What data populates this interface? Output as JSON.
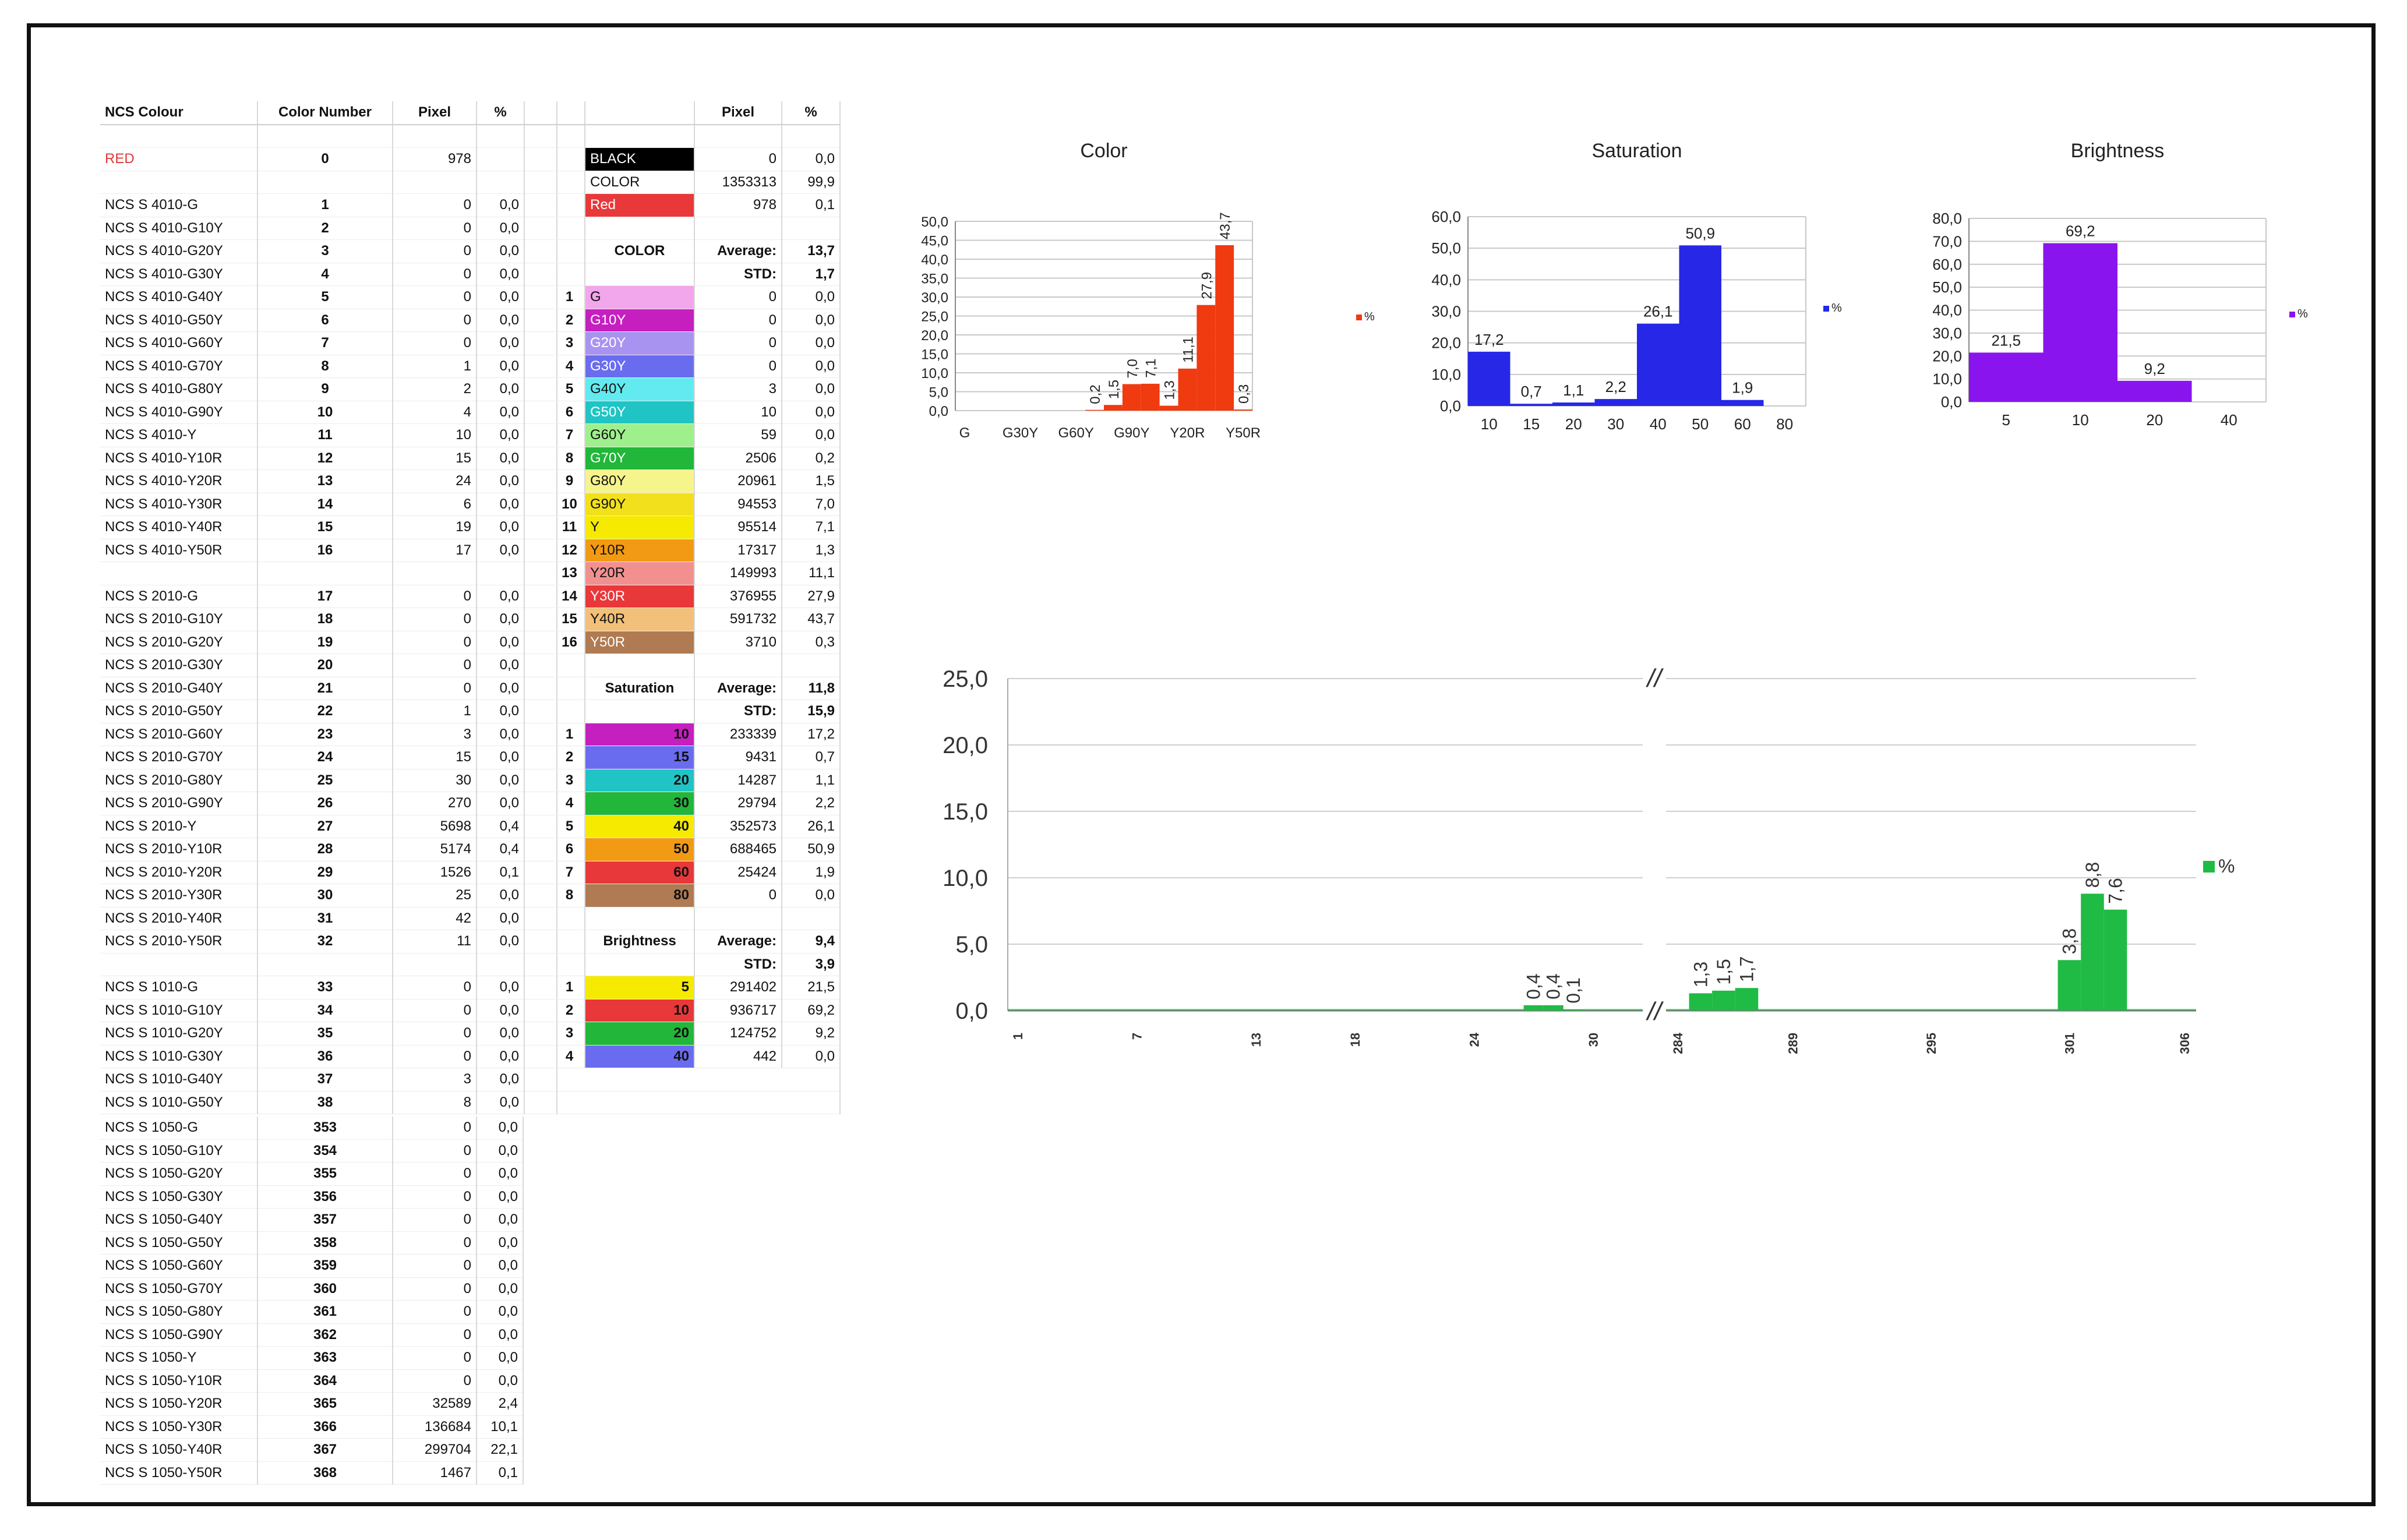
{
  "left_table": {
    "headers": [
      "NCS Colour",
      "Color Number",
      "Pixel",
      "%"
    ],
    "red_row": {
      "name": "RED",
      "num": "0",
      "pixel": "978",
      "pct": ""
    },
    "group1": [
      [
        "NCS S 4010-G",
        "1",
        "0",
        "0,0"
      ],
      [
        "NCS S 4010-G10Y",
        "2",
        "0",
        "0,0"
      ],
      [
        "NCS S 4010-G20Y",
        "3",
        "0",
        "0,0"
      ],
      [
        "NCS S 4010-G30Y",
        "4",
        "0",
        "0,0"
      ],
      [
        "NCS S 4010-G40Y",
        "5",
        "0",
        "0,0"
      ],
      [
        "NCS S 4010-G50Y",
        "6",
        "0",
        "0,0"
      ],
      [
        "NCS S 4010-G60Y",
        "7",
        "0",
        "0,0"
      ],
      [
        "NCS S 4010-G70Y",
        "8",
        "1",
        "0,0"
      ],
      [
        "NCS S 4010-G80Y",
        "9",
        "2",
        "0,0"
      ],
      [
        "NCS S 4010-G90Y",
        "10",
        "4",
        "0,0"
      ],
      [
        "NCS S 4010-Y",
        "11",
        "10",
        "0,0"
      ],
      [
        "NCS S 4010-Y10R",
        "12",
        "15",
        "0,0"
      ],
      [
        "NCS S 4010-Y20R",
        "13",
        "24",
        "0,0"
      ],
      [
        "NCS S 4010-Y30R",
        "14",
        "6",
        "0,0"
      ],
      [
        "NCS S 4010-Y40R",
        "15",
        "19",
        "0,0"
      ],
      [
        "NCS S 4010-Y50R",
        "16",
        "17",
        "0,0"
      ]
    ],
    "group2": [
      [
        "NCS S 2010-G",
        "17",
        "0",
        "0,0"
      ],
      [
        "NCS S 2010-G10Y",
        "18",
        "0",
        "0,0"
      ],
      [
        "NCS S 2010-G20Y",
        "19",
        "0",
        "0,0"
      ],
      [
        "NCS S 2010-G30Y",
        "20",
        "0",
        "0,0"
      ],
      [
        "NCS S 2010-G40Y",
        "21",
        "0",
        "0,0"
      ],
      [
        "NCS S 2010-G50Y",
        "22",
        "1",
        "0,0"
      ],
      [
        "NCS S 2010-G60Y",
        "23",
        "3",
        "0,0"
      ],
      [
        "NCS S 2010-G70Y",
        "24",
        "15",
        "0,0"
      ],
      [
        "NCS S 2010-G80Y",
        "25",
        "30",
        "0,0"
      ],
      [
        "NCS S 2010-G90Y",
        "26",
        "270",
        "0,0"
      ],
      [
        "NCS S 2010-Y",
        "27",
        "5698",
        "0,4"
      ],
      [
        "NCS S 2010-Y10R",
        "28",
        "5174",
        "0,4"
      ],
      [
        "NCS S 2010-Y20R",
        "29",
        "1526",
        "0,1"
      ],
      [
        "NCS S 2010-Y30R",
        "30",
        "25",
        "0,0"
      ],
      [
        "NCS S 2010-Y40R",
        "31",
        "42",
        "0,0"
      ],
      [
        "NCS S 2010-Y50R",
        "32",
        "11",
        "0,0"
      ]
    ],
    "group3": [
      [
        "NCS S 1010-G",
        "33",
        "0",
        "0,0"
      ],
      [
        "NCS S 1010-G10Y",
        "34",
        "0",
        "0,0"
      ],
      [
        "NCS S 1010-G20Y",
        "35",
        "0",
        "0,0"
      ],
      [
        "NCS S 1010-G30Y",
        "36",
        "0",
        "0,0"
      ],
      [
        "NCS S 1010-G40Y",
        "37",
        "3",
        "0,0"
      ],
      [
        "NCS S 1010-G50Y",
        "38",
        "8",
        "0,0"
      ]
    ],
    "group4": [
      [
        "NCS S 1050-G",
        "353",
        "0",
        "0,0"
      ],
      [
        "NCS S 1050-G10Y",
        "354",
        "0",
        "0,0"
      ],
      [
        "NCS S 1050-G20Y",
        "355",
        "0",
        "0,0"
      ],
      [
        "NCS S 1050-G30Y",
        "356",
        "0",
        "0,0"
      ],
      [
        "NCS S 1050-G40Y",
        "357",
        "0",
        "0,0"
      ],
      [
        "NCS S 1050-G50Y",
        "358",
        "0",
        "0,0"
      ],
      [
        "NCS S 1050-G60Y",
        "359",
        "0",
        "0,0"
      ],
      [
        "NCS S 1050-G70Y",
        "360",
        "0",
        "0,0"
      ],
      [
        "NCS S 1050-G80Y",
        "361",
        "0",
        "0,0"
      ],
      [
        "NCS S 1050-G90Y",
        "362",
        "0",
        "0,0"
      ],
      [
        "NCS S 1050-Y",
        "363",
        "0",
        "0,0"
      ],
      [
        "NCS S 1050-Y10R",
        "364",
        "0",
        "0,0"
      ],
      [
        "NCS S 1050-Y20R",
        "365",
        "32589",
        "2,4"
      ],
      [
        "NCS S 1050-Y30R",
        "366",
        "136684",
        "10,1"
      ],
      [
        "NCS S 1050-Y40R",
        "367",
        "299704",
        "22,1"
      ],
      [
        "NCS S 1050-Y50R",
        "368",
        "1467",
        "0,1"
      ]
    ]
  },
  "summary_table": {
    "headers": [
      "Pixel",
      "%"
    ],
    "top_rows": [
      {
        "label": "BLACK",
        "bg": "#000000",
        "fg": "#ffffff",
        "pixel": "0",
        "pct": "0,0"
      },
      {
        "label": "COLOR",
        "bg": "#ffffff",
        "fg": "#111111",
        "pixel": "1353313",
        "pct": "99,9"
      },
      {
        "label": "Red",
        "bg": "#e8383a",
        "fg": "#ffffff",
        "pixel": "978",
        "pct": "0,1"
      }
    ],
    "color_section": {
      "title": "COLOR",
      "avg_label": "Average:",
      "avg": "13,7",
      "std_label": "STD:",
      "std": "1,7",
      "rows": [
        {
          "n": "1",
          "label": "G",
          "bg": "#f2a6ec",
          "fg": "#111111",
          "pixel": "0",
          "pct": "0,0"
        },
        {
          "n": "2",
          "label": "G10Y",
          "bg": "#c61fc0",
          "fg": "#ffffff",
          "pixel": "0",
          "pct": "0,0"
        },
        {
          "n": "3",
          "label": "G20Y",
          "bg": "#a893f0",
          "fg": "#ffffff",
          "pixel": "0",
          "pct": "0,0"
        },
        {
          "n": "4",
          "label": "G30Y",
          "bg": "#6a6cf0",
          "fg": "#ffffff",
          "pixel": "0",
          "pct": "0,0"
        },
        {
          "n": "5",
          "label": "G40Y",
          "bg": "#62eaf0",
          "fg": "#111111",
          "pixel": "3",
          "pct": "0,0"
        },
        {
          "n": "6",
          "label": "G50Y",
          "bg": "#21c4c4",
          "fg": "#ffffff",
          "pixel": "10",
          "pct": "0,0"
        },
        {
          "n": "7",
          "label": "G60Y",
          "bg": "#9ef08c",
          "fg": "#111111",
          "pixel": "59",
          "pct": "0,0"
        },
        {
          "n": "8",
          "label": "G70Y",
          "bg": "#22b63a",
          "fg": "#ffffff",
          "pixel": "2506",
          "pct": "0,2"
        },
        {
          "n": "9",
          "label": "G80Y",
          "bg": "#f5f58c",
          "fg": "#111111",
          "pixel": "20961",
          "pct": "1,5"
        },
        {
          "n": "10",
          "label": "G90Y",
          "bg": "#f2e01c",
          "fg": "#111111",
          "pixel": "94553",
          "pct": "7,0"
        },
        {
          "n": "11",
          "label": "Y",
          "bg": "#f5ea00",
          "fg": "#111111",
          "pixel": "95514",
          "pct": "7,1"
        },
        {
          "n": "12",
          "label": "Y10R",
          "bg": "#f29a14",
          "fg": "#111111",
          "pixel": "17317",
          "pct": "1,3"
        },
        {
          "n": "13",
          "label": "Y20R",
          "bg": "#f29090",
          "fg": "#111111",
          "pixel": "149993",
          "pct": "11,1"
        },
        {
          "n": "14",
          "label": "Y30R",
          "bg": "#e8383a",
          "fg": "#ffffff",
          "pixel": "376955",
          "pct": "27,9"
        },
        {
          "n": "15",
          "label": "Y40R",
          "bg": "#f2c078",
          "fg": "#111111",
          "pixel": "591732",
          "pct": "43,7"
        },
        {
          "n": "16",
          "label": "Y50R",
          "bg": "#b07a52",
          "fg": "#ffffff",
          "pixel": "3710",
          "pct": "0,3"
        }
      ]
    },
    "saturation_section": {
      "title": "Saturation",
      "avg_label": "Average:",
      "avg": "11,8",
      "std_label": "STD:",
      "std": "15,9",
      "rows": [
        {
          "n": "1",
          "label": "10",
          "bg": "#c61fc0",
          "fg": "#111111",
          "pixel": "233339",
          "pct": "17,2"
        },
        {
          "n": "2",
          "label": "15",
          "bg": "#6a6cf0",
          "fg": "#111111",
          "pixel": "9431",
          "pct": "0,7"
        },
        {
          "n": "3",
          "label": "20",
          "bg": "#21c4c4",
          "fg": "#111111",
          "pixel": "14287",
          "pct": "1,1"
        },
        {
          "n": "4",
          "label": "30",
          "bg": "#22b63a",
          "fg": "#111111",
          "pixel": "29794",
          "pct": "2,2"
        },
        {
          "n": "5",
          "label": "40",
          "bg": "#f5ea00",
          "fg": "#111111",
          "pixel": "352573",
          "pct": "26,1"
        },
        {
          "n": "6",
          "label": "50",
          "bg": "#f29a14",
          "fg": "#111111",
          "pixel": "688465",
          "pct": "50,9"
        },
        {
          "n": "7",
          "label": "60",
          "bg": "#e8383a",
          "fg": "#111111",
          "pixel": "25424",
          "pct": "1,9"
        },
        {
          "n": "8",
          "label": "80",
          "bg": "#b07a52",
          "fg": "#111111",
          "pixel": "0",
          "pct": "0,0"
        }
      ]
    },
    "brightness_section": {
      "title": "Brightness",
      "avg_label": "Average:",
      "avg": "9,4",
      "std_label": "STD:",
      "std": "3,9",
      "rows": [
        {
          "n": "1",
          "label": "5",
          "bg": "#f5ea00",
          "fg": "#111111",
          "pixel": "291402",
          "pct": "21,5"
        },
        {
          "n": "2",
          "label": "10",
          "bg": "#e8383a",
          "fg": "#111111",
          "pixel": "936717",
          "pct": "69,2"
        },
        {
          "n": "3",
          "label": "20",
          "bg": "#22b63a",
          "fg": "#111111",
          "pixel": "124752",
          "pct": "9,2"
        },
        {
          "n": "4",
          "label": "40",
          "bg": "#6a6cf0",
          "fg": "#111111",
          "pixel": "442",
          "pct": "0,0"
        }
      ]
    }
  },
  "chart_data": [
    {
      "id": "color",
      "type": "bar",
      "title": "Color",
      "legend": "%",
      "color": "#f03a10",
      "categories": [
        "G",
        "G10Y",
        "G20Y",
        "G30Y",
        "G40Y",
        "G50Y",
        "G60Y",
        "G70Y",
        "G80Y",
        "G90Y",
        "Y",
        "Y10R",
        "Y20R",
        "Y30R",
        "Y40R",
        "Y50R"
      ],
      "tick_labels": [
        "G",
        "G30Y",
        "G60Y",
        "G90Y",
        "Y20R",
        "Y50R"
      ],
      "tick_indices": [
        0,
        3,
        6,
        9,
        12,
        15
      ],
      "values": [
        0,
        0,
        0,
        0,
        0,
        0,
        0,
        0.2,
        1.5,
        7.0,
        7.1,
        1.3,
        11.1,
        27.9,
        43.7,
        0.3
      ],
      "value_labels": [
        "",
        "",
        "",
        "",
        "",
        "",
        "",
        "0,2",
        "1,5",
        "7,0",
        "7,1",
        "1,3",
        "11,1",
        "27,9",
        "43,7",
        "0,3"
      ],
      "ylim": [
        0,
        50
      ],
      "yticks": [
        "0,0",
        "5,0",
        "10,0",
        "15,0",
        "20,0",
        "25,0",
        "30,0",
        "35,0",
        "40,0",
        "45,0",
        "50,0"
      ]
    },
    {
      "id": "saturation",
      "type": "bar",
      "title": "Saturation",
      "legend": "%",
      "color": "#2727e8",
      "categories": [
        "10",
        "15",
        "20",
        "30",
        "40",
        "50",
        "60",
        "80"
      ],
      "values": [
        17.2,
        0.7,
        1.1,
        2.2,
        26.1,
        50.9,
        1.9,
        0
      ],
      "value_labels": [
        "17,2",
        "0,7",
        "1,1",
        "2,2",
        "26,1",
        "50,9",
        "1,9",
        ""
      ],
      "ylim": [
        0,
        60
      ],
      "yticks": [
        "0,0",
        "10,0",
        "20,0",
        "30,0",
        "40,0",
        "50,0",
        "60,0"
      ]
    },
    {
      "id": "brightness",
      "type": "bar",
      "title": "Brightness",
      "legend": "%",
      "color": "#8a14ee",
      "categories": [
        "5",
        "10",
        "20",
        "40"
      ],
      "values": [
        21.5,
        69.2,
        9.2,
        0
      ],
      "value_labels": [
        "21,5",
        "69,2",
        "9,2",
        ""
      ],
      "ylim": [
        0,
        80
      ],
      "yticks": [
        "0,0",
        "10,0",
        "20,0",
        "30,0",
        "40,0",
        "50,0",
        "60,0",
        "70,0",
        "80,0"
      ]
    },
    {
      "id": "ncs",
      "type": "bar",
      "title": "",
      "legend": "%",
      "color": "#1fbb44",
      "break_marker": "//",
      "ylim": [
        0,
        25
      ],
      "yticks": [
        "0,0",
        "5,0",
        "10,0",
        "15,0",
        "20,0",
        "25,0"
      ],
      "left_segment": {
        "x": [
          1,
          2,
          3,
          4,
          5,
          6,
          7,
          8,
          9,
          10,
          11,
          12,
          13,
          14,
          15,
          16,
          17,
          18,
          19,
          20,
          21,
          22,
          23,
          24,
          25,
          26,
          27,
          28,
          29,
          30,
          31,
          32
        ],
        "values": [
          0,
          0,
          0,
          0,
          0,
          0,
          0,
          0,
          0,
          0,
          0,
          0,
          0,
          0,
          0,
          0,
          0,
          0,
          0,
          0,
          0,
          0,
          0,
          0,
          0,
          0,
          0.4,
          0.4,
          0.1,
          0,
          0,
          0
        ],
        "tick_labels": [
          "1",
          "7",
          "13",
          "18",
          "24",
          "30"
        ],
        "tick_x": [
          1,
          7,
          13,
          18,
          24,
          30
        ],
        "value_labels": [
          {
            "x": 27,
            "text": "0,4"
          },
          {
            "x": 28,
            "text": "0,4"
          },
          {
            "x": 29,
            "text": "0,1"
          }
        ]
      },
      "right_segment": {
        "x": [
          284,
          285,
          286,
          287,
          288,
          289,
          290,
          291,
          292,
          293,
          294,
          295,
          296,
          297,
          298,
          299,
          300,
          301,
          302,
          303,
          304,
          305,
          306
        ],
        "values": [
          0,
          1.3,
          1.5,
          1.7,
          0,
          0,
          0,
          0,
          0,
          0,
          0,
          0,
          0,
          0,
          0,
          0,
          0,
          3.8,
          8.8,
          7.6,
          0,
          0,
          0
        ],
        "tick_labels": [
          "284",
          "289",
          "295",
          "301",
          "306"
        ],
        "tick_x": [
          284,
          289,
          295,
          301,
          306
        ],
        "value_labels": [
          {
            "x": 285,
            "text": "1,3"
          },
          {
            "x": 286,
            "text": "1,5"
          },
          {
            "x": 287,
            "text": "1,7"
          },
          {
            "x": 301,
            "text": "3,8"
          },
          {
            "x": 302,
            "text": "8,8"
          },
          {
            "x": 303,
            "text": "7,6"
          }
        ]
      }
    }
  ]
}
